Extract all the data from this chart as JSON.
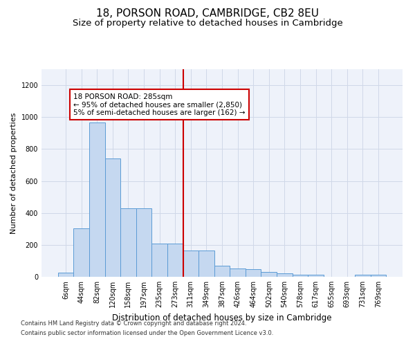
{
  "title": "18, PORSON ROAD, CAMBRIDGE, CB2 8EU",
  "subtitle": "Size of property relative to detached houses in Cambridge",
  "xlabel": "Distribution of detached houses by size in Cambridge",
  "ylabel": "Number of detached properties",
  "footnote1": "Contains HM Land Registry data © Crown copyright and database right 2024.",
  "footnote2": "Contains public sector information licensed under the Open Government Licence v3.0.",
  "bar_labels": [
    "6sqm",
    "44sqm",
    "82sqm",
    "120sqm",
    "158sqm",
    "197sqm",
    "235sqm",
    "273sqm",
    "311sqm",
    "349sqm",
    "387sqm",
    "426sqm",
    "464sqm",
    "502sqm",
    "540sqm",
    "578sqm",
    "617sqm",
    "655sqm",
    "693sqm",
    "731sqm",
    "769sqm"
  ],
  "bar_values": [
    25,
    305,
    965,
    740,
    430,
    430,
    210,
    210,
    165,
    165,
    70,
    50,
    48,
    30,
    20,
    15,
    15,
    0,
    0,
    13,
    15
  ],
  "bar_color": "#c5d8f0",
  "bar_edge_color": "#5b9bd5",
  "vline_x": 7.5,
  "vline_color": "#cc0000",
  "annotation_text": "18 PORSON ROAD: 285sqm\n← 95% of detached houses are smaller (2,850)\n5% of semi-detached houses are larger (162) →",
  "ylim": [
    0,
    1300
  ],
  "yticks": [
    0,
    200,
    400,
    600,
    800,
    1000,
    1200
  ],
  "bg_color": "#eef2fa",
  "grid_color": "#d0d8e8",
  "title_fontsize": 11,
  "subtitle_fontsize": 9.5,
  "xlabel_fontsize": 8.5,
  "ylabel_fontsize": 8,
  "tick_fontsize": 7,
  "annot_fontsize": 7.5,
  "footnote_fontsize": 6
}
